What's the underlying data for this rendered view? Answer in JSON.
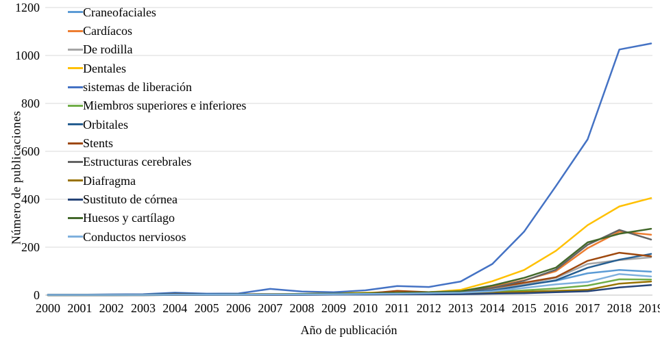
{
  "chart_data": {
    "type": "line",
    "title": "",
    "xlabel": "Año de publicación",
    "ylabel": "Número de publicaciones",
    "x": [
      2000,
      2001,
      2002,
      2003,
      2004,
      2005,
      2006,
      2007,
      2008,
      2009,
      2010,
      2011,
      2012,
      2013,
      2014,
      2015,
      2016,
      2017,
      2018,
      2019
    ],
    "y_ticks": [
      0,
      200,
      400,
      600,
      800,
      1000,
      1200
    ],
    "ylim": [
      0,
      1200
    ],
    "grid": "horizontal",
    "legend_position": "inside-top-left",
    "series": [
      {
        "name": "Craneofaciales",
        "color": "#5B9BD5",
        "values": [
          2,
          1,
          1,
          2,
          5,
          4,
          3,
          4,
          4,
          5,
          7,
          10,
          12,
          14,
          25,
          42,
          60,
          91,
          105,
          98
        ]
      },
      {
        "name": "Cardíacos",
        "color": "#ED7D31",
        "values": [
          1,
          1,
          1,
          2,
          3,
          3,
          4,
          5,
          5,
          6,
          9,
          13,
          12,
          18,
          35,
          62,
          100,
          196,
          265,
          252
        ]
      },
      {
        "name": "De rodilla",
        "color": "#A5A5A5",
        "values": [
          1,
          1,
          1,
          1,
          2,
          2,
          3,
          3,
          4,
          5,
          6,
          8,
          10,
          13,
          26,
          46,
          72,
          130,
          146,
          158
        ]
      },
      {
        "name": "Dentales",
        "color": "#FFC000",
        "values": [
          0,
          0,
          1,
          1,
          2,
          2,
          3,
          4,
          5,
          8,
          10,
          13,
          12,
          22,
          58,
          105,
          185,
          292,
          370,
          405
        ]
      },
      {
        "name": "sistemas de liberación",
        "color": "#4472C4",
        "values": [
          2,
          2,
          3,
          4,
          10,
          6,
          7,
          26,
          15,
          12,
          20,
          38,
          34,
          57,
          130,
          265,
          455,
          650,
          1025,
          1050
        ]
      },
      {
        "name": "Miembros superiores e inferiores",
        "color": "#70AD47",
        "values": [
          0,
          0,
          0,
          1,
          1,
          1,
          2,
          2,
          2,
          3,
          4,
          5,
          6,
          8,
          14,
          20,
          28,
          40,
          66,
          65
        ]
      },
      {
        "name": "Orbitales",
        "color": "#255E91",
        "values": [
          1,
          1,
          1,
          2,
          7,
          4,
          3,
          4,
          3,
          4,
          5,
          8,
          10,
          12,
          20,
          40,
          62,
          114,
          148,
          172
        ]
      },
      {
        "name": "Stents",
        "color": "#9E480E",
        "values": [
          1,
          1,
          1,
          1,
          3,
          2,
          2,
          3,
          3,
          4,
          6,
          18,
          12,
          16,
          30,
          52,
          75,
          143,
          177,
          162
        ]
      },
      {
        "name": "Estructuras cerebrales",
        "color": "#636363",
        "values": [
          0,
          0,
          0,
          1,
          1,
          1,
          2,
          2,
          3,
          4,
          5,
          8,
          10,
          14,
          30,
          60,
          106,
          210,
          272,
          232
        ]
      },
      {
        "name": "Diafragma",
        "color": "#997300",
        "values": [
          0,
          0,
          0,
          0,
          1,
          1,
          1,
          2,
          2,
          2,
          3,
          4,
          5,
          6,
          10,
          14,
          18,
          22,
          48,
          57
        ]
      },
      {
        "name": "Sustituto de córnea",
        "color": "#264478",
        "values": [
          0,
          0,
          0,
          0,
          1,
          1,
          1,
          1,
          1,
          2,
          2,
          3,
          3,
          4,
          6,
          8,
          12,
          16,
          32,
          42
        ]
      },
      {
        "name": "Huesos y cartílago",
        "color": "#43682B",
        "values": [
          1,
          1,
          1,
          1,
          2,
          2,
          3,
          4,
          5,
          6,
          8,
          10,
          12,
          16,
          40,
          72,
          115,
          220,
          256,
          277
        ]
      },
      {
        "name": "Conductos nerviosos",
        "color": "#7EB0DD",
        "values": [
          1,
          1,
          1,
          1,
          2,
          2,
          2,
          3,
          3,
          4,
          5,
          6,
          8,
          10,
          16,
          30,
          45,
          55,
          88,
          78
        ]
      }
    ]
  },
  "colors": {
    "grid": "#D9D9D9",
    "axis_line": "#BFBFBF",
    "text": "#000000",
    "background": "#FFFFFF"
  }
}
